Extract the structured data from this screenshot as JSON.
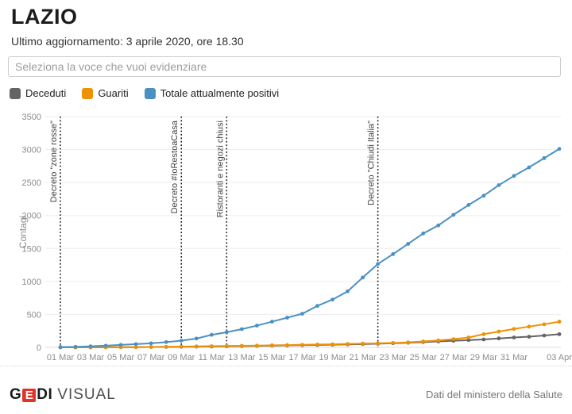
{
  "header": {
    "title": "LAZIO",
    "subtitle": "Ultimo aggiornamento: 3 aprile 2020, ore 18.30"
  },
  "search": {
    "placeholder": "Seleziona la voce che vuoi evidenziare"
  },
  "colors": {
    "deceduti": "#646464",
    "guariti": "#ef9105",
    "positivi": "#4a91c3",
    "logo_accent": "#e0342b"
  },
  "chart_data": {
    "type": "line",
    "title": "",
    "xlabel": "",
    "ylabel": "Contagi",
    "ylim": [
      0,
      3500
    ],
    "yticks": [
      0,
      500,
      1000,
      1500,
      2000,
      2500,
      3000,
      3500
    ],
    "grid": true,
    "legend_position": "top",
    "x": [
      "01 Mar",
      "02 Mar",
      "03 Mar",
      "04 Mar",
      "05 Mar",
      "06 Mar",
      "07 Mar",
      "08 Mar",
      "09 Mar",
      "10 Mar",
      "11 Mar",
      "12 Mar",
      "13 Mar",
      "14 Mar",
      "15 Mar",
      "16 Mar",
      "17 Mar",
      "18 Mar",
      "19 Mar",
      "20 Mar",
      "21 Mar",
      "22 Mar",
      "23 Mar",
      "24 Mar",
      "25 Mar",
      "26 Mar",
      "27 Mar",
      "28 Mar",
      "29 Mar",
      "30 Mar",
      "31 Mar",
      "01 Apr",
      "02 Apr",
      "03 Apr"
    ],
    "x_ticks": [
      0,
      2,
      4,
      6,
      8,
      10,
      12,
      14,
      16,
      18,
      20,
      22,
      24,
      26,
      28,
      30,
      33
    ],
    "series": [
      {
        "name": "Deceduti",
        "color": "#646464",
        "values": [
          0,
          0,
          0,
          1,
          2,
          3,
          6,
          7,
          9,
          11,
          13,
          16,
          19,
          22,
          26,
          30,
          33,
          36,
          40,
          45,
          50,
          55,
          63,
          70,
          80,
          90,
          100,
          110,
          120,
          136,
          150,
          162,
          180,
          200
        ]
      },
      {
        "name": "Guariti",
        "color": "#ef9105",
        "values": [
          1,
          1,
          2,
          3,
          3,
          4,
          6,
          9,
          12,
          15,
          18,
          21,
          24,
          27,
          31,
          35,
          39,
          43,
          47,
          52,
          57,
          62,
          68,
          76,
          90,
          105,
          125,
          150,
          200,
          240,
          280,
          315,
          350,
          390
        ]
      },
      {
        "name": "Totale attualmente positivi",
        "color": "#4a91c3",
        "values": [
          5,
          8,
          16,
          26,
          38,
          50,
          62,
          80,
          102,
          134,
          190,
          230,
          277,
          330,
          390,
          450,
          510,
          630,
          725,
          850,
          1060,
          1265,
          1414,
          1570,
          1728,
          1850,
          2010,
          2160,
          2300,
          2460,
          2600,
          2730,
          2870,
          3010
        ]
      }
    ],
    "annotations": [
      {
        "label": "Decreto \"zone rosse\"",
        "x_index": 0
      },
      {
        "label": "Decreto #IoRestoaCasa",
        "x_index": 8
      },
      {
        "label": "Ristoranti e negozi chiusi",
        "x_index": 11
      },
      {
        "label": "Decreto \"Chiudi Italia\"",
        "x_index": 21
      }
    ]
  },
  "footer": {
    "logo": {
      "g": "G",
      "e": "E",
      "di": "DI",
      "visual": "VISUAL"
    },
    "source": "Dati del ministero della Salute"
  }
}
